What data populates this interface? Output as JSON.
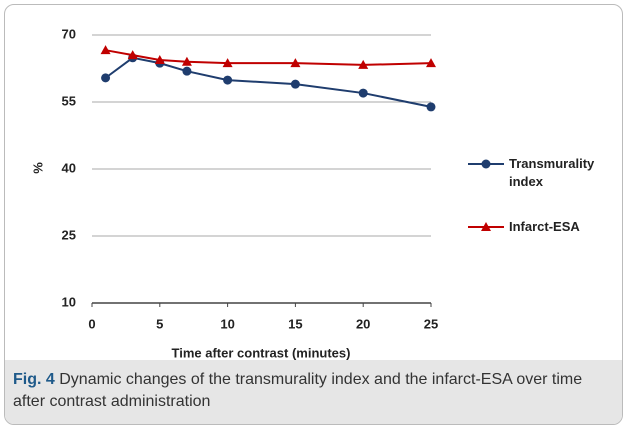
{
  "chart_data": {
    "type": "line",
    "x_label": "Time after contrast (minutes)",
    "y_label": "%",
    "x": [
      1,
      3,
      5,
      7,
      10,
      15,
      20,
      25
    ],
    "series": [
      {
        "name": "Transmurality index",
        "color": "#1f3d6e",
        "marker": "circle",
        "values": [
          60.4,
          64.9,
          63.7,
          61.9,
          59.9,
          59.0,
          57.0,
          53.9
        ]
      },
      {
        "name": "Infarct-ESA",
        "color": "#c00000",
        "marker": "triangle",
        "values": [
          66.6,
          65.5,
          64.4,
          64.0,
          63.7,
          63.7,
          63.3,
          63.7
        ]
      }
    ],
    "xlim": [
      0,
      25
    ],
    "xticks": [
      0,
      5,
      10,
      15,
      20,
      25
    ],
    "ylim": [
      10,
      70
    ],
    "yticks": [
      10,
      25,
      40,
      55,
      70
    ],
    "grid": true,
    "legend": "right"
  },
  "caption": {
    "label": "Fig. 4",
    "text": "Dynamic changes of the transmurality index and the infarct-ESA over time after contrast administration"
  }
}
